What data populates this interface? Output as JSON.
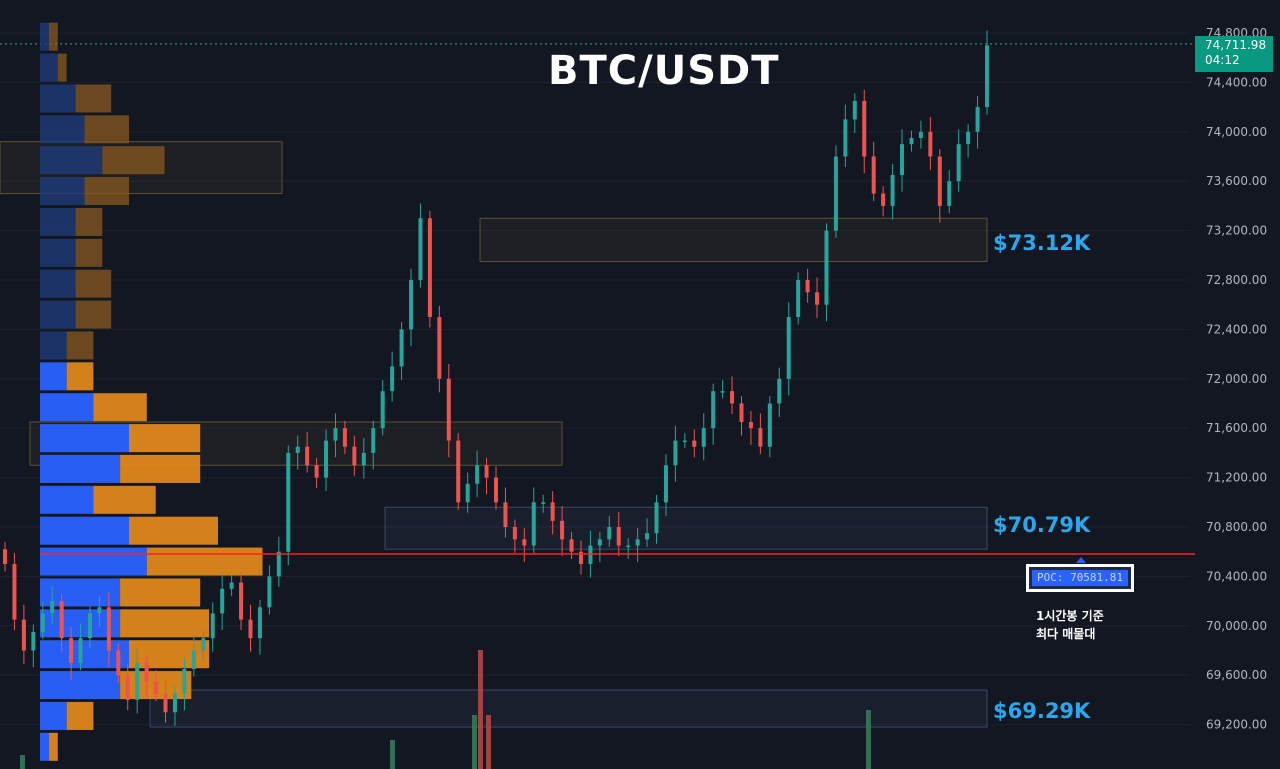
{
  "title": "BTC/USDT",
  "current_price": {
    "price": "74,711.98",
    "countdown": "04:12",
    "value": 74711.98
  },
  "levels": [
    {
      "label": "$73.12K",
      "value": 73120
    },
    {
      "label": "$70.79K",
      "value": 70790
    },
    {
      "label": "$69.29K",
      "value": 69290
    }
  ],
  "poc_label": "POC: 70581.81",
  "annotation": {
    "line1": "1시간봉 기준",
    "line2": "최다 매물대"
  },
  "colors": {
    "background": "#131722",
    "up": "#26a69a",
    "down": "#ef5350",
    "profile_buy": "#2962ff",
    "profile_sell": "#f7931a",
    "poc_line": "#ff2020",
    "level_text": "#29a8f0"
  },
  "chart_data": {
    "type": "candlestick",
    "title": "BTC/USDT",
    "y_axis": {
      "ticks": [
        74800,
        74400,
        74000,
        73600,
        73200,
        72800,
        72400,
        72000,
        71600,
        71200,
        70800,
        70400,
        70000,
        69600,
        69200
      ],
      "tick_labels": [
        "74,800.00",
        "74,400.00",
        "74,000.00",
        "73,600.00",
        "73,200.00",
        "72,800.00",
        "72,400.00",
        "72,000.00",
        "71,600.00",
        "71,200.00",
        "70,800.00",
        "70,400.00",
        "70,000.00",
        "69,600.00",
        "69,200.00"
      ],
      "range": [
        69000,
        74950
      ]
    },
    "poc": 70581.81,
    "zones": [
      {
        "low": 72950,
        "high": 73300
      },
      {
        "low": 70620,
        "high": 70960
      },
      {
        "low": 69180,
        "high": 69480
      },
      {
        "low": 71300,
        "high": 71650
      },
      {
        "low": 73500,
        "high": 73920
      }
    ],
    "volume_profile": {
      "bins": [
        {
          "price": 74770,
          "buy": 1,
          "sell": 1
        },
        {
          "price": 74520,
          "buy": 2,
          "sell": 1
        },
        {
          "price": 74270,
          "buy": 4,
          "sell": 4
        },
        {
          "price": 74020,
          "buy": 5,
          "sell": 5
        },
        {
          "price": 73770,
          "buy": 7,
          "sell": 7
        },
        {
          "price": 73520,
          "buy": 5,
          "sell": 5
        },
        {
          "price": 73270,
          "buy": 4,
          "sell": 3
        },
        {
          "price": 73020,
          "buy": 4,
          "sell": 3
        },
        {
          "price": 72770,
          "buy": 4,
          "sell": 4
        },
        {
          "price": 72520,
          "buy": 4,
          "sell": 4
        },
        {
          "price": 72270,
          "buy": 3,
          "sell": 3
        },
        {
          "price": 72020,
          "buy": 3,
          "sell": 3
        },
        {
          "price": 71770,
          "buy": 6,
          "sell": 6
        },
        {
          "price": 71520,
          "buy": 10,
          "sell": 8
        },
        {
          "price": 71270,
          "buy": 9,
          "sell": 9
        },
        {
          "price": 71020,
          "buy": 6,
          "sell": 7
        },
        {
          "price": 70770,
          "buy": 10,
          "sell": 10
        },
        {
          "price": 70520,
          "buy": 12,
          "sell": 13
        },
        {
          "price": 70270,
          "buy": 9,
          "sell": 9
        },
        {
          "price": 70020,
          "buy": 9,
          "sell": 10
        },
        {
          "price": 69770,
          "buy": 10,
          "sell": 9
        },
        {
          "price": 69520,
          "buy": 9,
          "sell": 8
        },
        {
          "price": 69270,
          "buy": 3,
          "sell": 3
        },
        {
          "price": 69020,
          "buy": 1,
          "sell": 1
        }
      ]
    },
    "closes": [
      70500,
      70050,
      69800,
      69950,
      70100,
      70200,
      69900,
      69700,
      69900,
      70100,
      70150,
      69800,
      69600,
      69400,
      69700,
      69550,
      69450,
      69300,
      69450,
      69650,
      69800,
      69900,
      70100,
      70300,
      70350,
      70050,
      69900,
      70150,
      70400,
      70600,
      71400,
      71450,
      71300,
      71200,
      71500,
      71600,
      71450,
      71300,
      71400,
      71600,
      71900,
      72100,
      72400,
      72800,
      73300,
      72500,
      72000,
      71500,
      71000,
      71150,
      71300,
      71200,
      71000,
      70800,
      70700,
      70650,
      71000,
      71000,
      70850,
      70700,
      70600,
      70500,
      70650,
      70700,
      70800,
      70650,
      70650,
      70700,
      70750,
      71000,
      71300,
      71500,
      71500,
      71450,
      71600,
      71900,
      71900,
      71800,
      71650,
      71600,
      71450,
      71800,
      72000,
      72500,
      72800,
      72700,
      72600,
      73200,
      73800,
      74100,
      74250,
      73800,
      73500,
      73400,
      73650,
      73900,
      73950,
      74000,
      73800,
      73400,
      73600,
      73900,
      74000,
      74200,
      74700
    ],
    "candle_x": {
      "start": 5,
      "end": 987
    }
  }
}
